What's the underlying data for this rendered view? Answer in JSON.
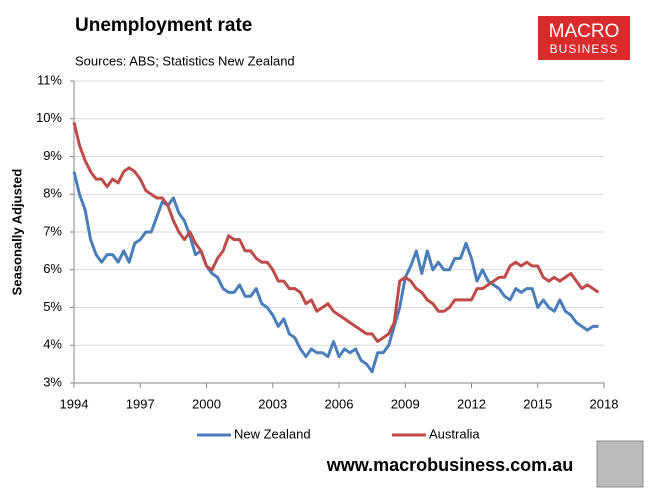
{
  "chart_data": {
    "type": "line",
    "title": "Unemployment rate",
    "subtitle": "Sources: ABS; Statistics New Zealand",
    "y_label": "Seasonally Adjusted",
    "logo": {
      "top": "MACRO",
      "bottom": "BUSINESS"
    },
    "footer": "www.macrobusiness.com.au",
    "x": [
      1994,
      1994.25,
      1994.5,
      1994.75,
      1995,
      1995.25,
      1995.5,
      1995.75,
      1996,
      1996.25,
      1996.5,
      1996.75,
      1997,
      1997.25,
      1997.5,
      1997.75,
      1998,
      1998.25,
      1998.5,
      1998.75,
      1999,
      1999.25,
      1999.5,
      1999.75,
      2000,
      2000.25,
      2000.5,
      2000.75,
      2001,
      2001.25,
      2001.5,
      2001.75,
      2002,
      2002.25,
      2002.5,
      2002.75,
      2003,
      2003.25,
      2003.5,
      2003.75,
      2004,
      2004.25,
      2004.5,
      2004.75,
      2005,
      2005.25,
      2005.5,
      2005.75,
      2006,
      2006.25,
      2006.5,
      2006.75,
      2007,
      2007.25,
      2007.5,
      2007.75,
      2008,
      2008.25,
      2008.5,
      2008.75,
      2009,
      2009.25,
      2009.5,
      2009.75,
      2010,
      2010.25,
      2010.5,
      2010.75,
      2011,
      2011.25,
      2011.5,
      2011.75,
      2012,
      2012.25,
      2012.5,
      2012.75,
      2013,
      2013.25,
      2013.5,
      2013.75,
      2014,
      2014.25,
      2014.5,
      2014.75,
      2015,
      2015.25,
      2015.5,
      2015.75,
      2016,
      2016.25,
      2016.5,
      2016.75,
      2017,
      2017.25,
      2017.5,
      2017.75
    ],
    "series": [
      {
        "name": "New Zealand",
        "color": "#4a7ebb",
        "values": [
          8.6,
          8.0,
          7.6,
          6.8,
          6.4,
          6.2,
          6.4,
          6.4,
          6.2,
          6.5,
          6.2,
          6.7,
          6.8,
          7.0,
          7.0,
          7.4,
          7.8,
          7.7,
          7.9,
          7.5,
          7.3,
          6.9,
          6.4,
          6.5,
          6.1,
          5.9,
          5.8,
          5.5,
          5.4,
          5.4,
          5.6,
          5.3,
          5.3,
          5.5,
          5.1,
          5.0,
          4.8,
          4.5,
          4.7,
          4.3,
          4.2,
          3.9,
          3.7,
          3.9,
          3.8,
          3.8,
          3.7,
          4.1,
          3.7,
          3.9,
          3.8,
          3.9,
          3.6,
          3.5,
          3.3,
          3.8,
          3.8,
          4.0,
          4.5,
          5.0,
          5.8,
          6.1,
          6.5,
          5.9,
          6.5,
          6.0,
          6.2,
          6.0,
          6.0,
          6.3,
          6.3,
          6.7,
          6.3,
          5.7,
          6.0,
          5.7,
          5.6,
          5.5,
          5.3,
          5.2,
          5.5,
          5.4,
          5.5,
          5.5,
          5.0,
          5.2,
          5.0,
          4.9,
          5.2,
          4.9,
          4.8,
          4.6,
          4.5,
          4.4,
          4.5,
          4.5
        ]
      },
      {
        "name": "Australia",
        "color": "#be4b48",
        "values": [
          9.9,
          9.3,
          8.9,
          8.6,
          8.4,
          8.4,
          8.2,
          8.4,
          8.3,
          8.6,
          8.7,
          8.6,
          8.4,
          8.1,
          8.0,
          7.9,
          7.9,
          7.7,
          7.3,
          7.0,
          6.8,
          7.0,
          6.7,
          6.5,
          6.1,
          6.0,
          6.3,
          6.5,
          6.9,
          6.8,
          6.8,
          6.5,
          6.5,
          6.3,
          6.2,
          6.2,
          6.0,
          5.7,
          5.7,
          5.5,
          5.5,
          5.4,
          5.1,
          5.2,
          4.9,
          5.0,
          5.1,
          4.9,
          4.8,
          4.7,
          4.6,
          4.5,
          4.4,
          4.3,
          4.3,
          4.1,
          4.2,
          4.3,
          4.6,
          5.7,
          5.8,
          5.7,
          5.5,
          5.4,
          5.2,
          5.1,
          4.9,
          4.9,
          5.0,
          5.2,
          5.2,
          5.2,
          5.2,
          5.5,
          5.5,
          5.6,
          5.7,
          5.8,
          5.8,
          6.1,
          6.2,
          6.1,
          6.2,
          6.1,
          6.1,
          5.8,
          5.7,
          5.8,
          5.7,
          5.8,
          5.9,
          5.7,
          5.5,
          5.6,
          5.5,
          5.4
        ]
      }
    ],
    "xlim": [
      1994,
      2018
    ],
    "xticks": [
      1994,
      1997,
      2000,
      2003,
      2006,
      2009,
      2012,
      2015,
      2018
    ],
    "ylim": [
      3,
      11
    ],
    "yticks": [
      {
        "value": 3,
        "label": "3%"
      },
      {
        "value": 4,
        "label": "4%"
      },
      {
        "value": 5,
        "label": "5%"
      },
      {
        "value": 6,
        "label": "6%"
      },
      {
        "value": 7,
        "label": "7%"
      },
      {
        "value": 8,
        "label": "8%"
      },
      {
        "value": 9,
        "label": "9%"
      },
      {
        "value": 10,
        "label": "10%"
      },
      {
        "value": 11,
        "label": "11%"
      }
    ],
    "grid": true
  }
}
